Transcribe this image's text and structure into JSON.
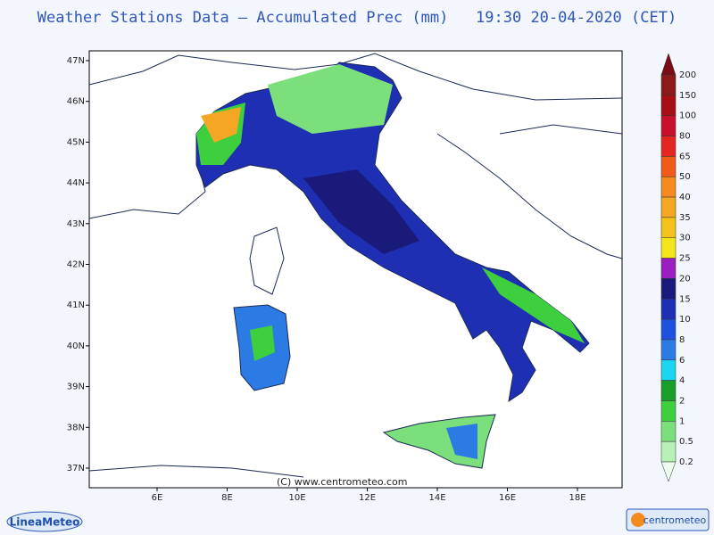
{
  "header": {
    "title": "Weather Stations Data — Accumulated Prec (mm)   19:30 20-04-2020 (CET)"
  },
  "map": {
    "latitude_labels": [
      "47N",
      "46N",
      "45N",
      "44N",
      "43N",
      "42N",
      "41N",
      "40N",
      "39N",
      "38N",
      "37N"
    ],
    "longitude_labels": [
      "6E",
      "8E",
      "10E",
      "12E",
      "14E",
      "16E",
      "18E"
    ],
    "copyright": "(C) www.centrometeo.com"
  },
  "legend": {
    "labels": [
      "200",
      "150",
      "100",
      "80",
      "65",
      "50",
      "40",
      "35",
      "30",
      "25",
      "20",
      "15",
      "10",
      "8",
      "6",
      "4",
      "2",
      "1",
      "0.5",
      "0.2"
    ],
    "top_color": "#7a0c17",
    "colors": [
      "#8b1a1a",
      "#a50f15",
      "#c8102e",
      "#e3261f",
      "#f05a1a",
      "#f58a1e",
      "#f5a623",
      "#f4c21a",
      "#f3e51a",
      "#9b1fbf",
      "#1a1a7a",
      "#1f2fb4",
      "#2050e0",
      "#2c7be5",
      "#1ad6f0",
      "#1a9e2a",
      "#3ecf3e",
      "#7be07b",
      "#b8f0b8"
    ],
    "bottom_color": "#eefcee"
  },
  "footer": {
    "left_logo": "LineaMeteo",
    "right_logo": "centrometeo"
  }
}
